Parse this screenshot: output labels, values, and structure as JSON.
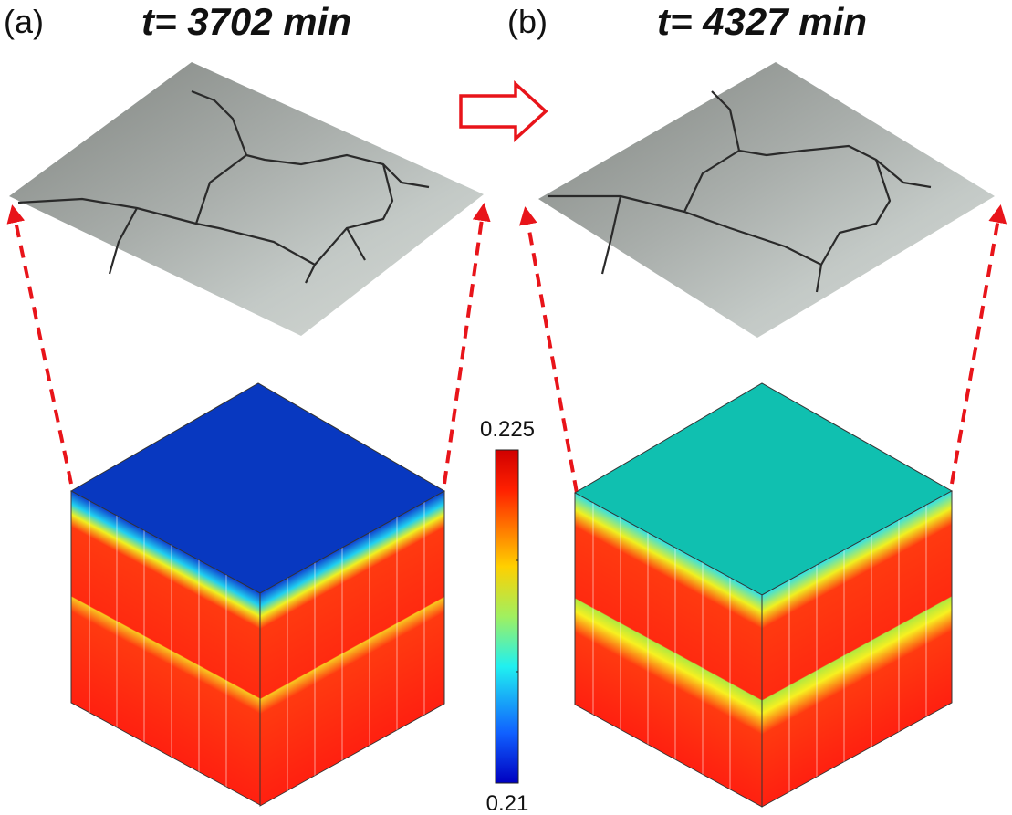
{
  "panels": [
    {
      "label": "(a)",
      "title": "t= 3702 min"
    },
    {
      "label": "(b)",
      "title": "t= 4327 min"
    }
  ],
  "colorbar": {
    "max": 0.225,
    "min": 0.21
  }
}
